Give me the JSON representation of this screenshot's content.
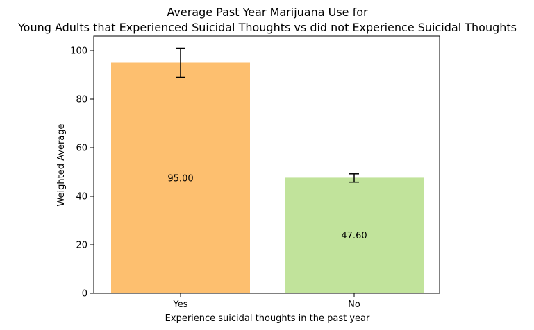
{
  "chart_data": {
    "type": "bar",
    "title_line1": "Average Past Year Marijuana Use for",
    "title_line2": "Young Adults that Experienced Suicidal Thoughts vs did not Experience Suicidal Thoughts",
    "xlabel": "Experience suicidal thoughts in the past year",
    "ylabel": "Weighted Average",
    "categories": [
      "Yes",
      "No"
    ],
    "values": [
      95.0,
      47.6
    ],
    "value_labels": [
      "95.00",
      "47.60"
    ],
    "error_low": [
      89.0,
      45.8
    ],
    "error_high": [
      101.0,
      49.2
    ],
    "colors": [
      "#fdbf6f",
      "#c1e39b"
    ],
    "ylim": [
      0,
      106
    ],
    "yticks": [
      0,
      20,
      40,
      60,
      80,
      100
    ],
    "grid": false,
    "legend": "none"
  }
}
